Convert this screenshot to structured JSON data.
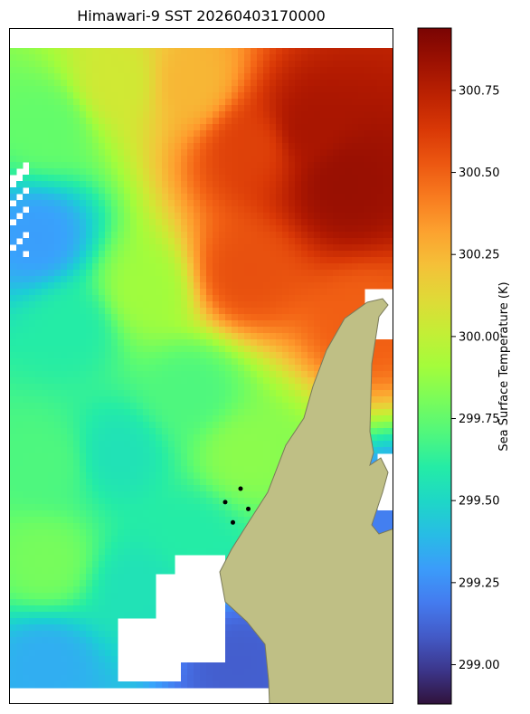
{
  "chart_data": {
    "type": "heatmap",
    "title": "Himawari-9 SST 20260403170000",
    "colorbar": {
      "label": "Sea Surface Temperature (K)",
      "range": [
        298.88,
        300.94
      ],
      "ticks": [
        "299.00",
        "299.25",
        "299.50",
        "299.75",
        "300.00",
        "300.25",
        "300.50",
        "300.75"
      ],
      "colormap": "turbo"
    },
    "grid": "off",
    "land_color": "#bfbf85",
    "land_edge_color": "#7a7a5a",
    "missing_color": "#ffffff",
    "point_markers": [
      {
        "lon_frac": 0.56,
        "lat_frac": 0.7
      },
      {
        "lon_frac": 0.6,
        "lat_frac": 0.68
      },
      {
        "lon_frac": 0.62,
        "lat_frac": 0.71
      },
      {
        "lon_frac": 0.58,
        "lat_frac": 0.73
      }
    ],
    "sst_regions": [
      {
        "region": "north-east offshore",
        "value": 300.85
      },
      {
        "region": "north central",
        "value": 300.4
      },
      {
        "region": "north-west",
        "value": 300.05
      },
      {
        "region": "west central",
        "value": 299.6
      },
      {
        "region": "near-coast channel",
        "value": 299.7
      },
      {
        "region": "south-west",
        "value": 299.65
      },
      {
        "region": "south-east bay",
        "value": 299.05
      }
    ]
  }
}
